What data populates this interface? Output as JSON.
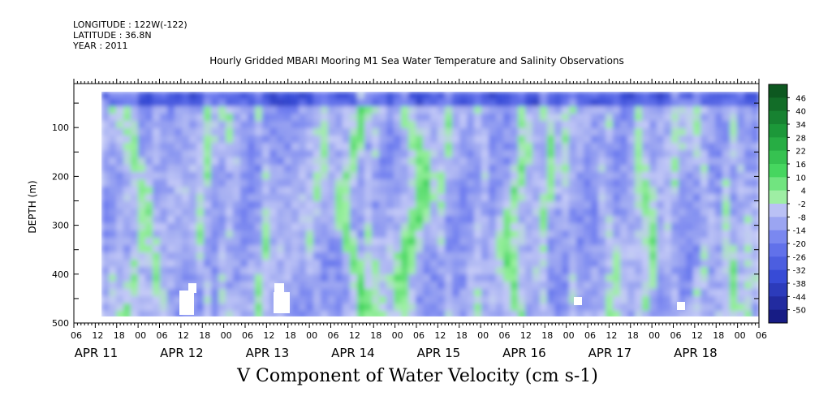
{
  "header": {
    "longitude": "LONGITUDE : 122W(-122)",
    "latitude": "LATITUDE : 36.8N",
    "year": "YEAR : 2011"
  },
  "chart_data": {
    "type": "heatmap",
    "title": "Hourly Gridded MBARI Mooring M1 Sea Water Temperature and Salinity Observations",
    "variable_label": "V Component of Water Velocity (cm s-1)",
    "ylabel": "DEPTH (m)",
    "y_ticks": [
      100,
      200,
      300,
      400,
      500
    ],
    "ylim": [
      500,
      10
    ],
    "data_depth_range": [
      20,
      490
    ],
    "x_hour_ticks": [
      "06",
      "12",
      "18",
      "00",
      "06",
      "12",
      "18",
      "00",
      "06",
      "12",
      "18",
      "00",
      "06",
      "12",
      "18",
      "00",
      "06",
      "12",
      "18",
      "00",
      "06",
      "12",
      "18",
      "00",
      "06",
      "12",
      "18",
      "00",
      "06",
      "12",
      "18",
      "00",
      "06"
    ],
    "x_day_labels": [
      "APR 11",
      "APR 12",
      "APR 13",
      "APR 14",
      "APR 15",
      "APR 16",
      "APR 17",
      "APR 18"
    ],
    "colorbar_labels": [
      "46",
      "40",
      "34",
      "28",
      "22",
      "16",
      "10",
      "4",
      "-2",
      "-8",
      "-14",
      "-20",
      "-26",
      "-32",
      "-38",
      "-44",
      "-50"
    ],
    "color_range": [
      -50,
      52
    ],
    "colors": {
      "strong_positive": "#0b4d1c",
      "positive": "#44d45a",
      "weak_positive": "#9cf0a0",
      "near_zero": "#c4caf7",
      "weak_negative": "#a9b2f2",
      "negative": "#6f7ef0",
      "strong_negative": "#13147a",
      "missing": "#ffffff"
    }
  }
}
